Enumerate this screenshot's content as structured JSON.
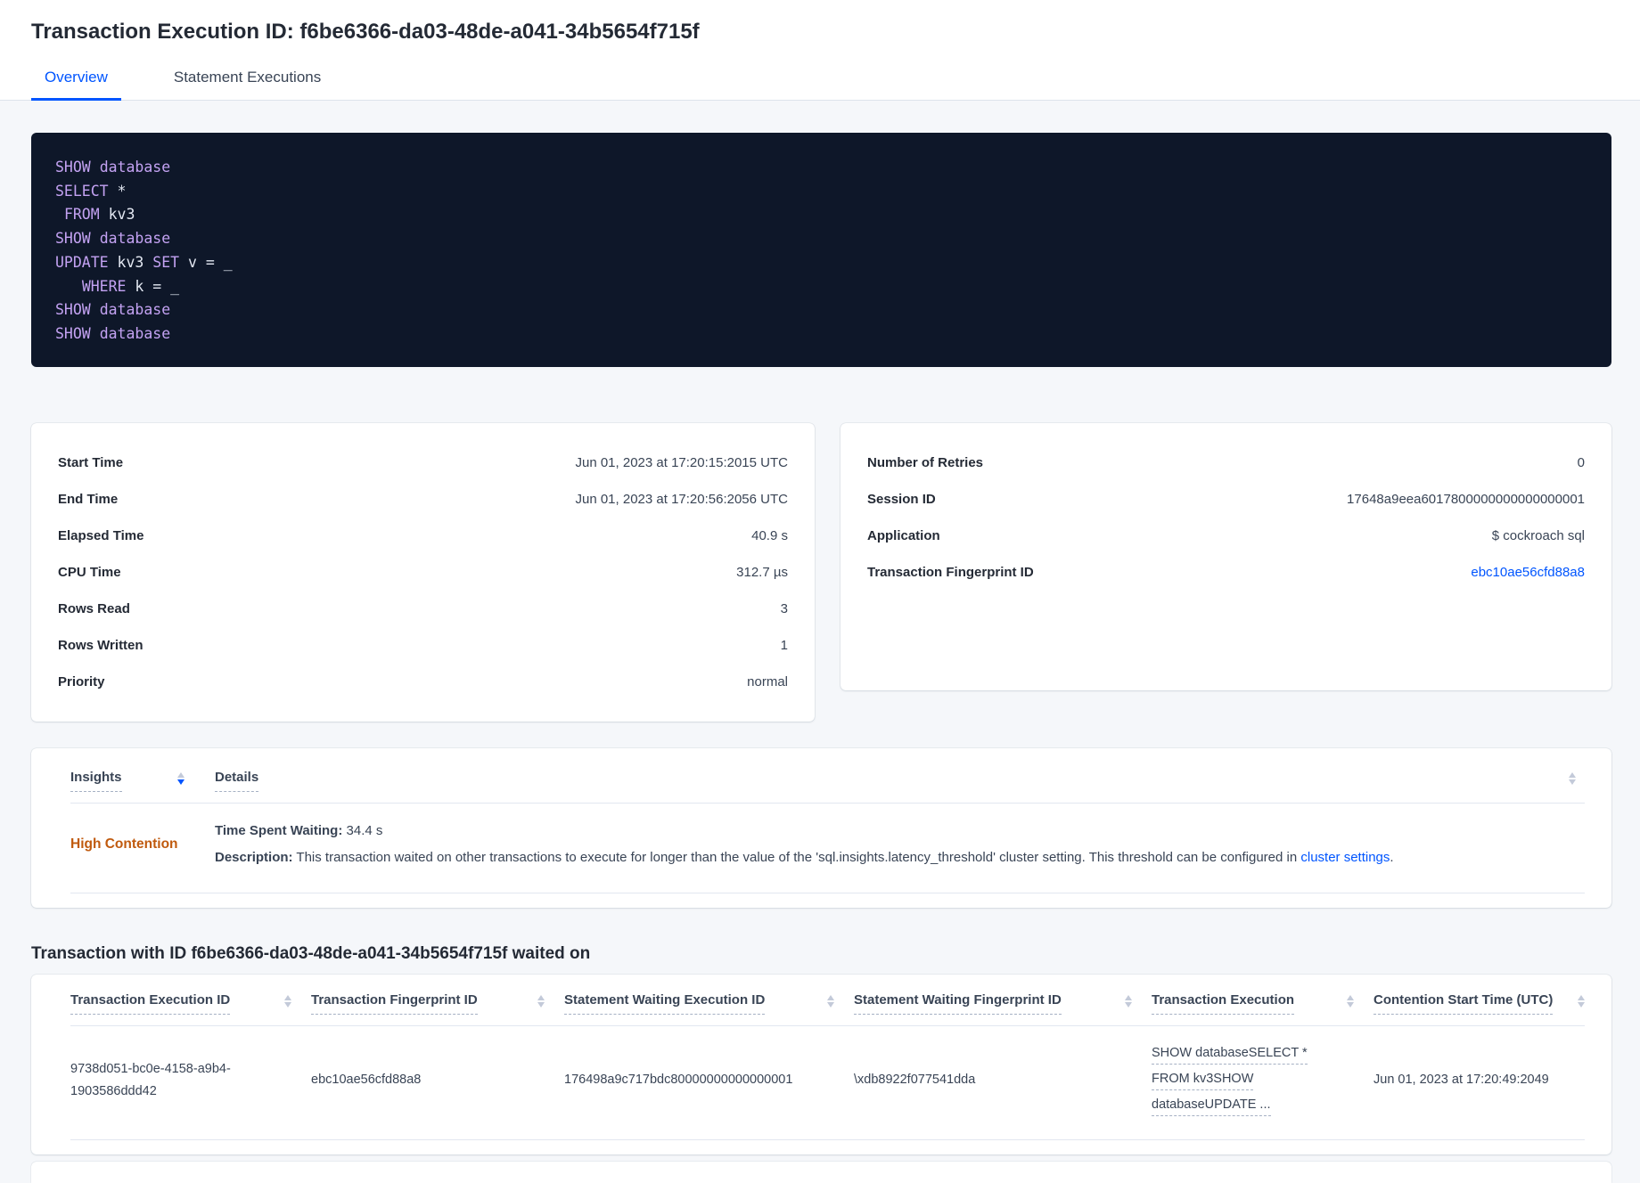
{
  "colors": {
    "accent": "#0055ff",
    "insight_orange": "#c05a0e",
    "code_keyword": "#c3a2f2",
    "code_text": "#e3e8f2",
    "code_background": "#0e1729"
  },
  "header": {
    "title": "Transaction Execution ID: f6be6366-da03-48de-a041-34b5654f715f"
  },
  "tabs": {
    "overview": "Overview",
    "statement_executions": "Statement Executions"
  },
  "sql": {
    "lines": [
      [
        {
          "text": "SHOW",
          "type": "keyword"
        },
        {
          "text": " ",
          "type": "plain"
        },
        {
          "text": "database",
          "type": "keyword"
        }
      ],
      [
        {
          "text": "SELECT",
          "type": "keyword"
        },
        {
          "text": " *",
          "type": "plain"
        }
      ],
      [
        {
          "text": " ",
          "type": "plain"
        },
        {
          "text": "FROM",
          "type": "keyword"
        },
        {
          "text": " kv3",
          "type": "plain"
        }
      ],
      [
        {
          "text": "SHOW",
          "type": "keyword"
        },
        {
          "text": " ",
          "type": "plain"
        },
        {
          "text": "database",
          "type": "keyword"
        }
      ],
      [
        {
          "text": "UPDATE",
          "type": "keyword"
        },
        {
          "text": " kv3 ",
          "type": "plain"
        },
        {
          "text": "SET",
          "type": "keyword"
        },
        {
          "text": " v = _",
          "type": "plain"
        }
      ],
      [
        {
          "text": "   ",
          "type": "plain"
        },
        {
          "text": "WHERE",
          "type": "keyword"
        },
        {
          "text": " k = _",
          "type": "plain"
        }
      ],
      [
        {
          "text": "SHOW",
          "type": "keyword"
        },
        {
          "text": " ",
          "type": "plain"
        },
        {
          "text": "database",
          "type": "keyword"
        }
      ],
      [
        {
          "text": "SHOW",
          "type": "keyword"
        },
        {
          "text": " ",
          "type": "plain"
        },
        {
          "text": "database",
          "type": "keyword"
        }
      ]
    ]
  },
  "execution_details": {
    "rows": [
      {
        "label": "Start Time",
        "value": "Jun 01, 2023 at 17:20:15:2015 UTC"
      },
      {
        "label": "End Time",
        "value": "Jun 01, 2023 at 17:20:56:2056 UTC"
      },
      {
        "label": "Elapsed Time",
        "value": "40.9 s"
      },
      {
        "label": "CPU Time",
        "value": "312.7 µs"
      },
      {
        "label": "Rows Read",
        "value": "3"
      },
      {
        "label": "Rows Written",
        "value": "1"
      },
      {
        "label": "Priority",
        "value": "normal"
      }
    ]
  },
  "session_details": {
    "rows": [
      {
        "label": "Number of Retries",
        "value": "0"
      },
      {
        "label": "Session ID",
        "value": "17648a9eea6017800000000000000001"
      },
      {
        "label": "Application",
        "value": "$ cockroach sql"
      },
      {
        "label": "Transaction Fingerprint ID",
        "value": "ebc10ae56cfd88a8",
        "link": true
      }
    ]
  },
  "insights": {
    "columns": [
      {
        "label": "Insights",
        "sort": "desc"
      },
      {
        "label": "Details"
      }
    ],
    "rows": [
      {
        "insight": "High Contention",
        "time_spent_waiting_label": "Time Spent Waiting:",
        "time_spent_waiting": " 34.4 s",
        "description_label": "Description:",
        "description": " This transaction waited on other transactions to execute for longer than the value of the 'sql.insights.latency_threshold' cluster setting. This threshold can be configured in ",
        "description_link": "cluster settings",
        "description_suffix": "."
      }
    ]
  },
  "waited_on": {
    "heading": "Transaction with ID f6be6366-da03-48de-a041-34b5654f715f waited on",
    "columns": [
      "Transaction Execution ID",
      "Transaction Fingerprint ID",
      "Statement Waiting Execution ID",
      "Statement Waiting Fingerprint ID",
      "Transaction Execution",
      "Contention Start Time (UTC)"
    ],
    "rows": [
      {
        "transaction_execution_id": "9738d051-bc0e-4158-a9b4-1903586ddd42",
        "transaction_fingerprint_id": "ebc10ae56cfd88a8",
        "statement_waiting_execution_id": "176498a9c717bdc80000000000000001",
        "statement_waiting_fingerprint_id": "\\xdb8922f077541dda",
        "transaction_execution_lines": [
          "SHOW databaseSELECT *",
          "FROM kv3SHOW",
          "databaseUPDATE ..."
        ],
        "contention_start_time": "Jun 01, 2023 at 17:20:49:2049"
      }
    ]
  }
}
